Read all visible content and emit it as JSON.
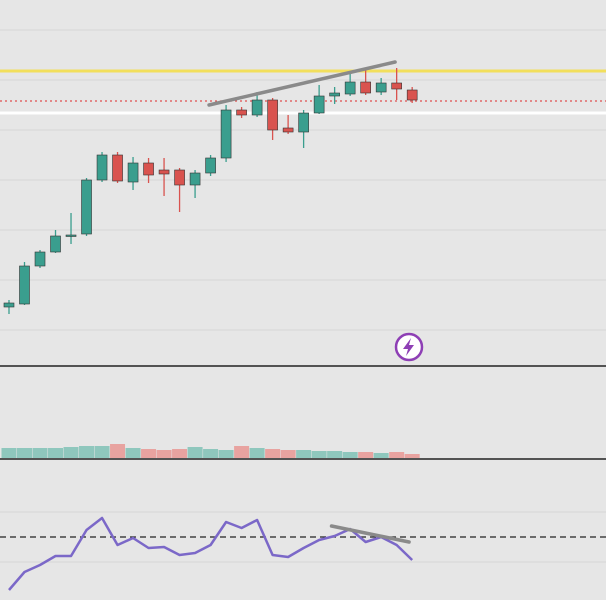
{
  "chart_data": [
    {
      "type": "candlestick",
      "x": [
        0,
        1,
        2,
        3,
        4,
        5,
        6,
        7,
        8,
        9,
        10,
        11,
        12,
        13,
        14,
        15,
        16,
        17,
        18,
        19,
        20,
        21,
        22,
        23,
        24,
        25,
        26
      ],
      "open": [
        58,
        61,
        99,
        113,
        129,
        131,
        185,
        210,
        183,
        202,
        195,
        195,
        180,
        192,
        207,
        255,
        250,
        265,
        237,
        233,
        252,
        269,
        271,
        283,
        273,
        282,
        275
      ],
      "high": [
        65,
        103,
        115,
        135,
        152,
        187,
        213,
        213,
        208,
        207,
        207,
        197,
        195,
        210,
        260,
        258,
        273,
        267,
        250,
        255,
        280,
        278,
        293,
        295,
        287,
        297,
        278
      ],
      "low": [
        51,
        60,
        97,
        112,
        121,
        129,
        183,
        182,
        175,
        182,
        169,
        153,
        167,
        189,
        203,
        247,
        248,
        225,
        231,
        217,
        251,
        261,
        269,
        270,
        270,
        265,
        262
      ],
      "close": [
        62,
        99,
        113,
        129,
        130,
        185,
        210,
        184,
        202,
        190,
        191,
        180,
        192,
        207,
        255,
        250,
        265,
        235,
        233,
        252,
        269,
        272,
        283,
        272,
        282,
        276,
        265
      ],
      "up_color": "#3a9e8e",
      "down_color": "#d9534f",
      "xlim": [
        -0.58,
        38.5
      ],
      "ylim": [
        0,
        365
      ],
      "yticks": [
        35,
        85,
        135,
        185,
        235,
        285,
        335
      ],
      "grid": true,
      "hlines": [
        {
          "value": 294,
          "color": "#f2df5c",
          "style": "solid"
        },
        {
          "value": 252,
          "color": "#ffffff",
          "style": "solid"
        },
        {
          "value": 264,
          "color": "#e05050",
          "style": "dotted"
        }
      ],
      "trendlines": [
        {
          "x": [
            12.9,
            24.9
          ],
          "values": [
            260,
            303
          ],
          "color": "#8a8a8a"
        }
      ]
    },
    {
      "type": "bar",
      "x": [
        0,
        1,
        2,
        3,
        4,
        5,
        6,
        7,
        8,
        9,
        10,
        11,
        12,
        13,
        14,
        15,
        16,
        17,
        18,
        19,
        20,
        21,
        22,
        23,
        24,
        25,
        26
      ],
      "values": [
        10,
        10,
        10,
        10,
        11,
        12,
        12,
        14,
        10,
        9,
        8,
        9,
        11,
        9,
        8,
        12,
        10,
        9,
        8,
        8,
        7,
        7,
        6,
        6,
        5,
        6,
        4
      ],
      "colors": [
        "#8fc7bd",
        "#8fc7bd",
        "#8fc7bd",
        "#8fc7bd",
        "#8fc7bd",
        "#8fc7bd",
        "#8fc7bd",
        "#e8a3a0",
        "#8fc7bd",
        "#e8a3a0",
        "#e8a3a0",
        "#e8a3a0",
        "#8fc7bd",
        "#8fc7bd",
        "#8fc7bd",
        "#e8a3a0",
        "#8fc7bd",
        "#e8a3a0",
        "#e8a3a0",
        "#8fc7bd",
        "#8fc7bd",
        "#8fc7bd",
        "#8fc7bd",
        "#e8a3a0",
        "#8fc7bd",
        "#e8a3a0",
        "#e8a3a0"
      ],
      "xlim": [
        -0.58,
        38.5
      ],
      "ylim": [
        0,
        90
      ]
    },
    {
      "type": "line",
      "x": [
        0,
        1,
        2,
        3,
        4,
        5,
        6,
        7,
        8,
        9,
        10,
        11,
        12,
        13,
        14,
        15,
        16,
        17,
        18,
        19,
        20,
        21,
        22,
        23,
        24,
        25,
        26
      ],
      "values": [
        10,
        28,
        35,
        44,
        44,
        70,
        82,
        55,
        62,
        52,
        53,
        45,
        47,
        55,
        78,
        72,
        80,
        45,
        43,
        52,
        60,
        64,
        71,
        58,
        63,
        55,
        40
      ],
      "color": "#7b68c8",
      "xlim": [
        -0.58,
        38.5
      ],
      "ylim": [
        0,
        140
      ],
      "yticks": [
        38,
        88
      ],
      "grid": true,
      "hlines": [
        {
          "value": 63,
          "color": "#222222",
          "style": "dashed"
        }
      ],
      "trendlines": [
        {
          "x": [
            20.8,
            25.8
          ],
          "values": [
            74,
            58
          ],
          "color": "#8a8a8a"
        }
      ]
    }
  ]
}
